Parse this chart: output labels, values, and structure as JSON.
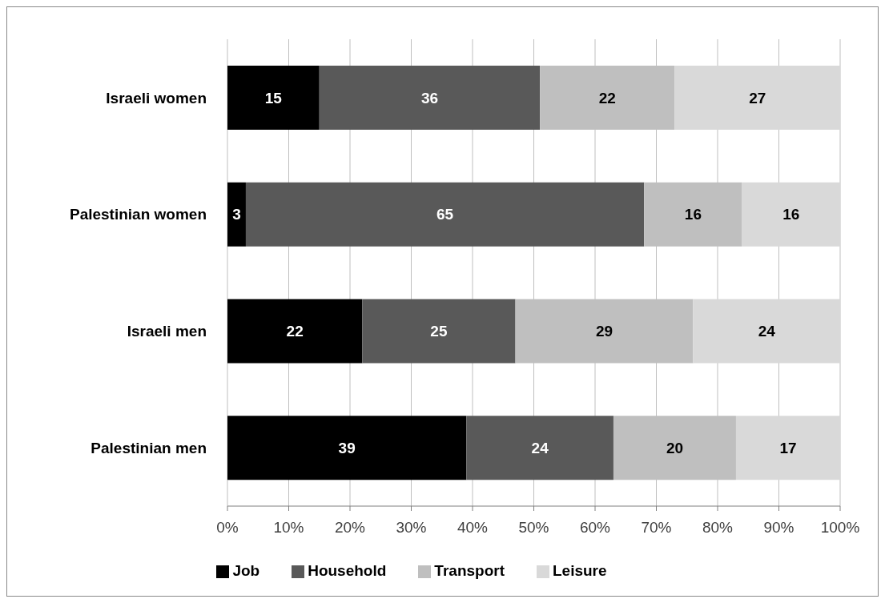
{
  "chart_data": {
    "type": "bar",
    "orientation": "horizontal",
    "stacked": true,
    "categories": [
      "Israeli women",
      "Palestinian women",
      "Israeli men",
      "Palestinian men"
    ],
    "series": [
      {
        "name": "Job",
        "color": "#000000",
        "values": [
          15,
          3,
          22,
          39
        ]
      },
      {
        "name": "Household",
        "color": "#595959",
        "values": [
          36,
          65,
          25,
          24
        ]
      },
      {
        "name": "Transport",
        "color": "#bfbfbf",
        "values": [
          22,
          16,
          29,
          20
        ]
      },
      {
        "name": "Leisure",
        "color": "#d9d9d9",
        "values": [
          27,
          16,
          24,
          17
        ]
      }
    ],
    "xlim": [
      0,
      100
    ],
    "xticks": [
      {
        "value": 0,
        "label": "0%"
      },
      {
        "value": 10,
        "label": "10%"
      },
      {
        "value": 20,
        "label": "20%"
      },
      {
        "value": 30,
        "label": "30%"
      },
      {
        "value": 40,
        "label": "40%"
      },
      {
        "value": 50,
        "label": "50%"
      },
      {
        "value": 60,
        "label": "60%"
      },
      {
        "value": 70,
        "label": "70%"
      },
      {
        "value": 80,
        "label": "80%"
      },
      {
        "value": 90,
        "label": "90%"
      },
      {
        "value": 100,
        "label": "100%"
      }
    ],
    "grid": "x",
    "legend": "bottom",
    "data_labels": true
  }
}
